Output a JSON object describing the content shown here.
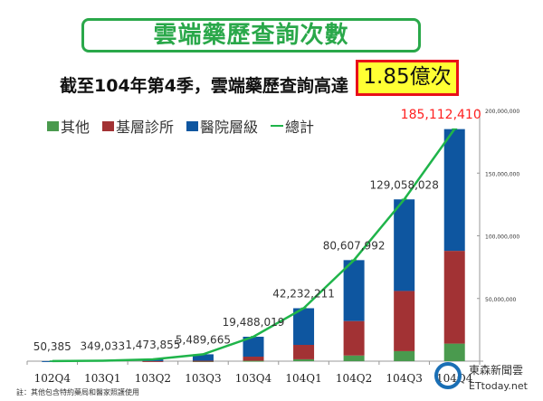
{
  "header": {
    "title": "雲端藥歷查詢次數",
    "subtitle": "截至104年第4季，雲端藥歷查詢高達",
    "highlight": "1.85億次"
  },
  "note": "註：其他包含特約藥局和醫家照護使用",
  "watermark": {
    "line1": "東森新聞雲",
    "line2": "ETtoday.net"
  },
  "colors": {
    "other": "#4a9a4e",
    "clinic": "#a23234",
    "hospital": "#0e56a0",
    "total": "#1fb44a",
    "top_label": "#ff2020"
  },
  "chart_data": {
    "type": "bar",
    "stacked": true,
    "categories": [
      "102Q4",
      "103Q1",
      "103Q2",
      "103Q3",
      "103Q4",
      "104Q1",
      "104Q2",
      "104Q3",
      "104Q4"
    ],
    "series": [
      {
        "name": "其他",
        "values": [
          0,
          0,
          0,
          0.05,
          0.3,
          1.5,
          4.5,
          8,
          14
        ]
      },
      {
        "name": "基層診所",
        "values": [
          0,
          0,
          0.07,
          0.3,
          3.3,
          11.5,
          27.5,
          48,
          74
        ]
      },
      {
        "name": "醫院層級",
        "values": [
          0.05,
          0.35,
          1.4,
          5.14,
          15.89,
          29.23,
          48.61,
          73.06,
          97.11
        ]
      }
    ],
    "line": {
      "name": "總計",
      "values": [
        50385,
        349033,
        1473855,
        5489665,
        19488019,
        42232211,
        80607992,
        129058028,
        185112410
      ],
      "labels": [
        "50,385",
        "349,033",
        "1,473,855",
        "5,489,665",
        "19,488,019",
        "42,232,211",
        "80,607,992",
        "129,058,028",
        "185,112,410"
      ]
    },
    "units": "million",
    "yticks": [
      0,
      50000000,
      100000000,
      150000000,
      200000000
    ],
    "ytick_labels": [
      "",
      "50,000,000",
      "100,000,000",
      "150,000,000",
      "200,000,000"
    ],
    "ylim": [
      0,
      200000000
    ],
    "legend": {
      "position": "top-left",
      "items": [
        "其他",
        "基層診所",
        "醫院層級",
        "總計"
      ]
    }
  }
}
